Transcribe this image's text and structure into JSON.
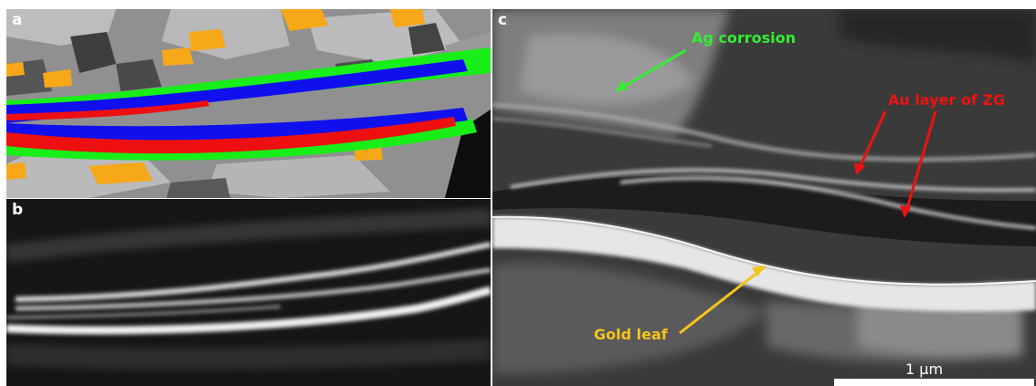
{
  "panels": {
    "a": {
      "letter": "a"
    },
    "b": {
      "letter": "b"
    },
    "c": {
      "letter": "c",
      "annotations": {
        "ag_corrosion": "Ag corrosion",
        "au_layer": "Au layer of ZG",
        "gold_leaf": "Gold leaf"
      },
      "scale_bar": {
        "label": "1 µm"
      }
    }
  },
  "colors": {
    "ag_corrosion": "#33ee33",
    "au_layer": "#ee1111",
    "gold_leaf": "#f5c518",
    "map_orange": "#f7a818",
    "map_blue": "#1010ee",
    "map_green": "#18ee18",
    "map_red": "#ee1010"
  }
}
